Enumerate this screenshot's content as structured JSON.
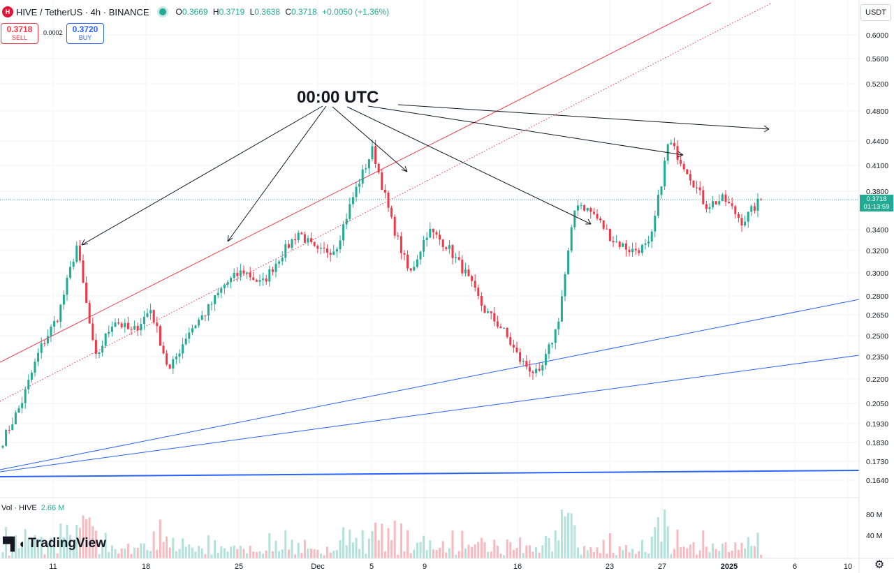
{
  "header": {
    "logo_icon": "hive-logo-icon",
    "symbol_text": "HIVE / TetherUS · 4h · BINANCE",
    "ohlc": [
      {
        "key": "O",
        "value": "0.3669"
      },
      {
        "key": "H",
        "value": "0.3719"
      },
      {
        "key": "L",
        "value": "0.3638"
      },
      {
        "key": "C",
        "value": "0.3718"
      }
    ],
    "change": "+0.0050 (+1.36%)",
    "status_color": "#22ab94"
  },
  "trade": {
    "sell_price": "0.3718",
    "sell_label": "SELL",
    "spread": "0.0002",
    "buy_price": "0.3720",
    "buy_label": "BUY"
  },
  "price_axis": {
    "currency": "USDT",
    "labels": [
      "0.6000",
      "0.5600",
      "0.5200",
      "0.4800",
      "0.4400",
      "0.4100",
      "0.3800",
      "0.3400",
      "0.3200",
      "0.3000",
      "0.2800",
      "0.2650",
      "0.2500",
      "0.2350",
      "0.2200",
      "0.2050",
      "0.1930",
      "0.1830",
      "0.1730",
      "0.1640"
    ],
    "last_price": "0.3718",
    "countdown": "01:13:59",
    "last_color": "#22ab94"
  },
  "time_axis": {
    "labels": [
      "11",
      "18",
      "25",
      "Dec",
      "5",
      "9",
      "16",
      "23",
      "27",
      "2025",
      "6",
      "10"
    ]
  },
  "annotation": {
    "text": "00:00 UTC"
  },
  "volume": {
    "label": "Vol · HIVE",
    "value": "2.66 M",
    "axis_labels": [
      "80 M",
      "40 M"
    ]
  },
  "branding": {
    "name": "TradingView",
    "icon": "tradingview-logo-icon"
  },
  "settings_icon": "gear-icon",
  "colors": {
    "up": "#22ab94",
    "down": "#f23645",
    "trend_red": "#f23645",
    "trend_blue": "#2962ff"
  },
  "chart_data": {
    "type": "candlestick",
    "title": "HIVE / TetherUS · 4h · BINANCE",
    "scale": "log",
    "ylim": [
      0.162,
      0.615
    ],
    "x_dates": [
      "11",
      "18",
      "25",
      "Dec",
      "5",
      "9",
      "16",
      "23",
      "27",
      "2025",
      "6",
      "10"
    ],
    "anchor_prices": [
      0.184,
      0.205,
      0.24,
      0.265,
      0.325,
      0.233,
      0.262,
      0.252,
      0.27,
      0.225,
      0.252,
      0.268,
      0.29,
      0.302,
      0.29,
      0.315,
      0.338,
      0.318,
      0.322,
      0.378,
      0.43,
      0.35,
      0.298,
      0.34,
      0.325,
      0.3,
      0.27,
      0.255,
      0.232,
      0.222,
      0.258,
      0.37,
      0.355,
      0.33,
      0.32,
      0.325,
      0.44,
      0.405,
      0.365,
      0.372,
      0.348,
      0.3718
    ],
    "last_close": 0.3718,
    "volume_max_millions": 100
  }
}
